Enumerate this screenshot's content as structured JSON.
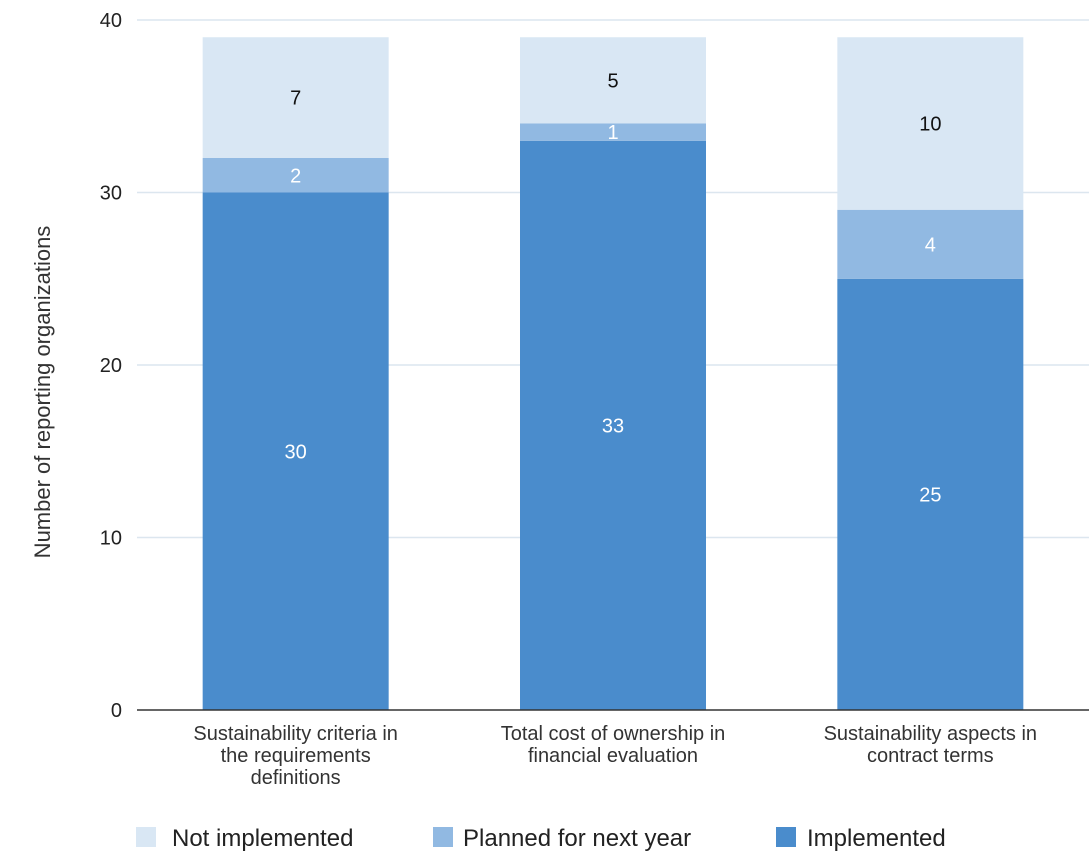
{
  "chart_data": {
    "type": "bar",
    "stacked": true,
    "title": "",
    "xlabel": "",
    "ylabel": "Number of reporting organizations",
    "ylim": [
      0,
      40
    ],
    "yticks": [
      "0",
      "10",
      "20",
      "30",
      "40"
    ],
    "grid": true,
    "legend_position": "bottom",
    "categories": [
      [
        "Sustainability criteria in",
        "the requirements",
        "definitions"
      ],
      [
        "Total cost of ownership in",
        "financial evaluation"
      ],
      [
        "Sustainability aspects in",
        "contract terms"
      ]
    ],
    "series": [
      {
        "name": "Implemented",
        "values": [
          30,
          33,
          25
        ],
        "color": "#4a8ccc",
        "label_color": "#ffffff"
      },
      {
        "name": "Planned for next year",
        "values": [
          2,
          1,
          4
        ],
        "color": "#91b9e2",
        "label_color": "#ffffff"
      },
      {
        "name": "Not implemented",
        "values": [
          7,
          5,
          10
        ],
        "color": "#d9e7f4",
        "label_color": "#111111"
      }
    ],
    "legend_order": [
      "Not implemented",
      "Planned for next year",
      "Implemented"
    ]
  }
}
